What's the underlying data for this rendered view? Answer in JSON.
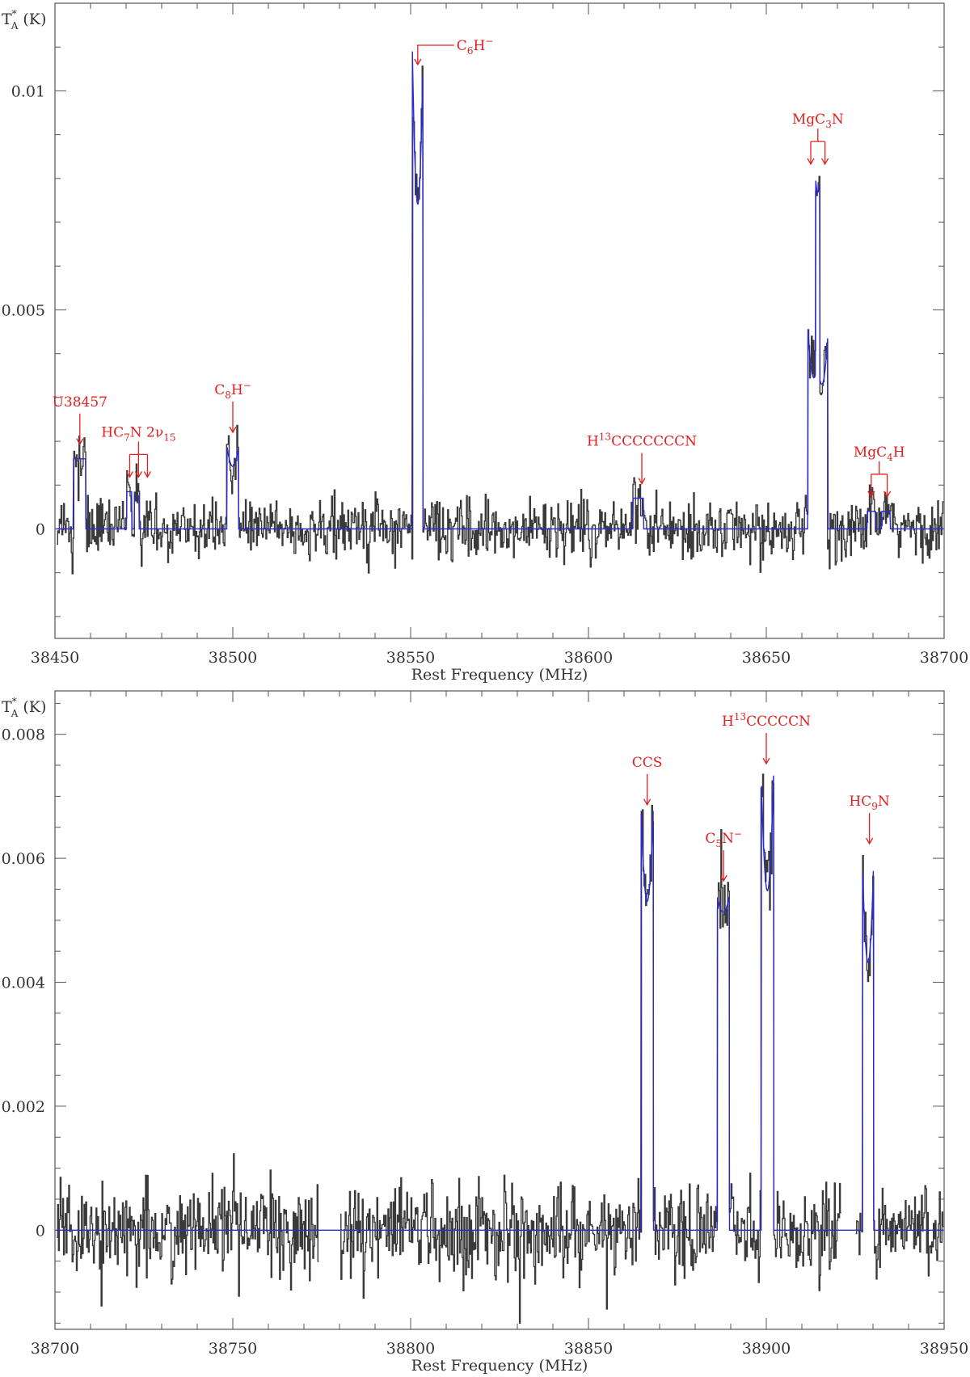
{
  "chart_data": [
    {
      "type": "line",
      "ylabel_main": "T",
      "ylabel_sub": "A",
      "ylabel_sup": "*",
      "ylabel_unit": " (K)",
      "xlabel": "Rest Frequency (MHz)",
      "xlim": [
        38450,
        38700
      ],
      "ylim": [
        -0.0025,
        0.012
      ],
      "xticks": [
        38450,
        38500,
        38550,
        38600,
        38650,
        38700
      ],
      "xtick_labels": [
        "38450",
        "38500",
        "38550",
        "38600",
        "38650",
        "38700"
      ],
      "yticks": [
        0,
        0.005,
        0.01
      ],
      "ytick_labels": [
        "0",
        "0.005",
        "0.01"
      ],
      "colors": {
        "observed": "#3a3a3a",
        "model": "#2b2bd1",
        "annotation": "#e02020"
      },
      "lines": [
        {
          "center": 38456.9,
          "peak": 0.0016,
          "width": 3.4,
          "dip": 0.0
        },
        {
          "center": 38470.9,
          "peak": 0.00085,
          "width": 1.4,
          "dip": 0.0
        },
        {
          "center": 38473.0,
          "peak": 0.00075,
          "width": 1.4,
          "dip": 0.0
        },
        {
          "center": 38500.0,
          "peak": 0.0019,
          "width": 3.3,
          "dip": 0.25
        },
        {
          "center": 38552.0,
          "peak": 0.0109,
          "width": 3.0,
          "dip": 0.32
        },
        {
          "center": 38614.0,
          "peak": 0.0007,
          "width": 3.0,
          "dip": 0.0
        },
        {
          "center": 38663.4,
          "peak": 0.0046,
          "width": 3.4,
          "dip": 0.25
        },
        {
          "center": 38665.6,
          "peak": 0.0044,
          "width": 3.4,
          "dip": 0.25
        },
        {
          "center": 38679.6,
          "peak": 0.0004,
          "width": 2.4,
          "dip": 0.0
        },
        {
          "center": 38683.6,
          "peak": 0.0004,
          "width": 2.4,
          "dip": 0.0
        }
      ],
      "noise_rms": 0.00045,
      "annotations": [
        {
          "label": "U38457",
          "x": 38457
        },
        {
          "label": "HC7N 2ν15",
          "x": [
            38471,
            38473.5,
            38476
          ]
        },
        {
          "label": "C8H−",
          "x": 38500
        },
        {
          "label": "C6H−",
          "x": 38552
        },
        {
          "label": "H13CCCCCCCN",
          "x": 38615
        },
        {
          "label": "MgC3N",
          "x": [
            38662.5,
            38666.5
          ]
        },
        {
          "label": "MgC4H",
          "x": [
            38679.5,
            38684
          ]
        }
      ]
    },
    {
      "type": "line",
      "ylabel_main": "T",
      "ylabel_sub": "A",
      "ylabel_sup": "*",
      "ylabel_unit": " (K)",
      "xlabel": "Rest Frequency (MHz)",
      "xlim": [
        38700,
        38950
      ],
      "ylim": [
        -0.0016,
        0.0087
      ],
      "xticks": [
        38700,
        38750,
        38800,
        38850,
        38900,
        38950
      ],
      "xtick_labels": [
        "38700",
        "38750",
        "38800",
        "38850",
        "38900",
        "38950"
      ],
      "yticks": [
        0,
        0.002,
        0.004,
        0.006,
        0.008
      ],
      "ytick_labels": [
        "0",
        "0.002",
        "0.004",
        "0.006",
        "0.008"
      ],
      "colors": {
        "observed": "#3a3a3a",
        "model": "#2b2bd1",
        "annotation": "#e02020"
      },
      "lines": [
        {
          "center": 38866.5,
          "peak": 0.0068,
          "width": 3.4,
          "dip": 0.22
        },
        {
          "center": 38887.9,
          "peak": 0.0054,
          "width": 3.4,
          "dip": 0.05
        },
        {
          "center": 38900.3,
          "peak": 0.0074,
          "width": 3.5,
          "dip": 0.26
        },
        {
          "center": 38928.6,
          "peak": 0.006,
          "width": 3.2,
          "dip": 0.28
        }
      ],
      "noise_rms": 0.0005,
      "annotations": [
        {
          "label": "CCS",
          "x": 38866.5
        },
        {
          "label": "C5N−",
          "x": 38888
        },
        {
          "label": "H13CCCCCN",
          "x": 38900
        },
        {
          "label": "HC9N",
          "x": 38929
        }
      ]
    }
  ]
}
